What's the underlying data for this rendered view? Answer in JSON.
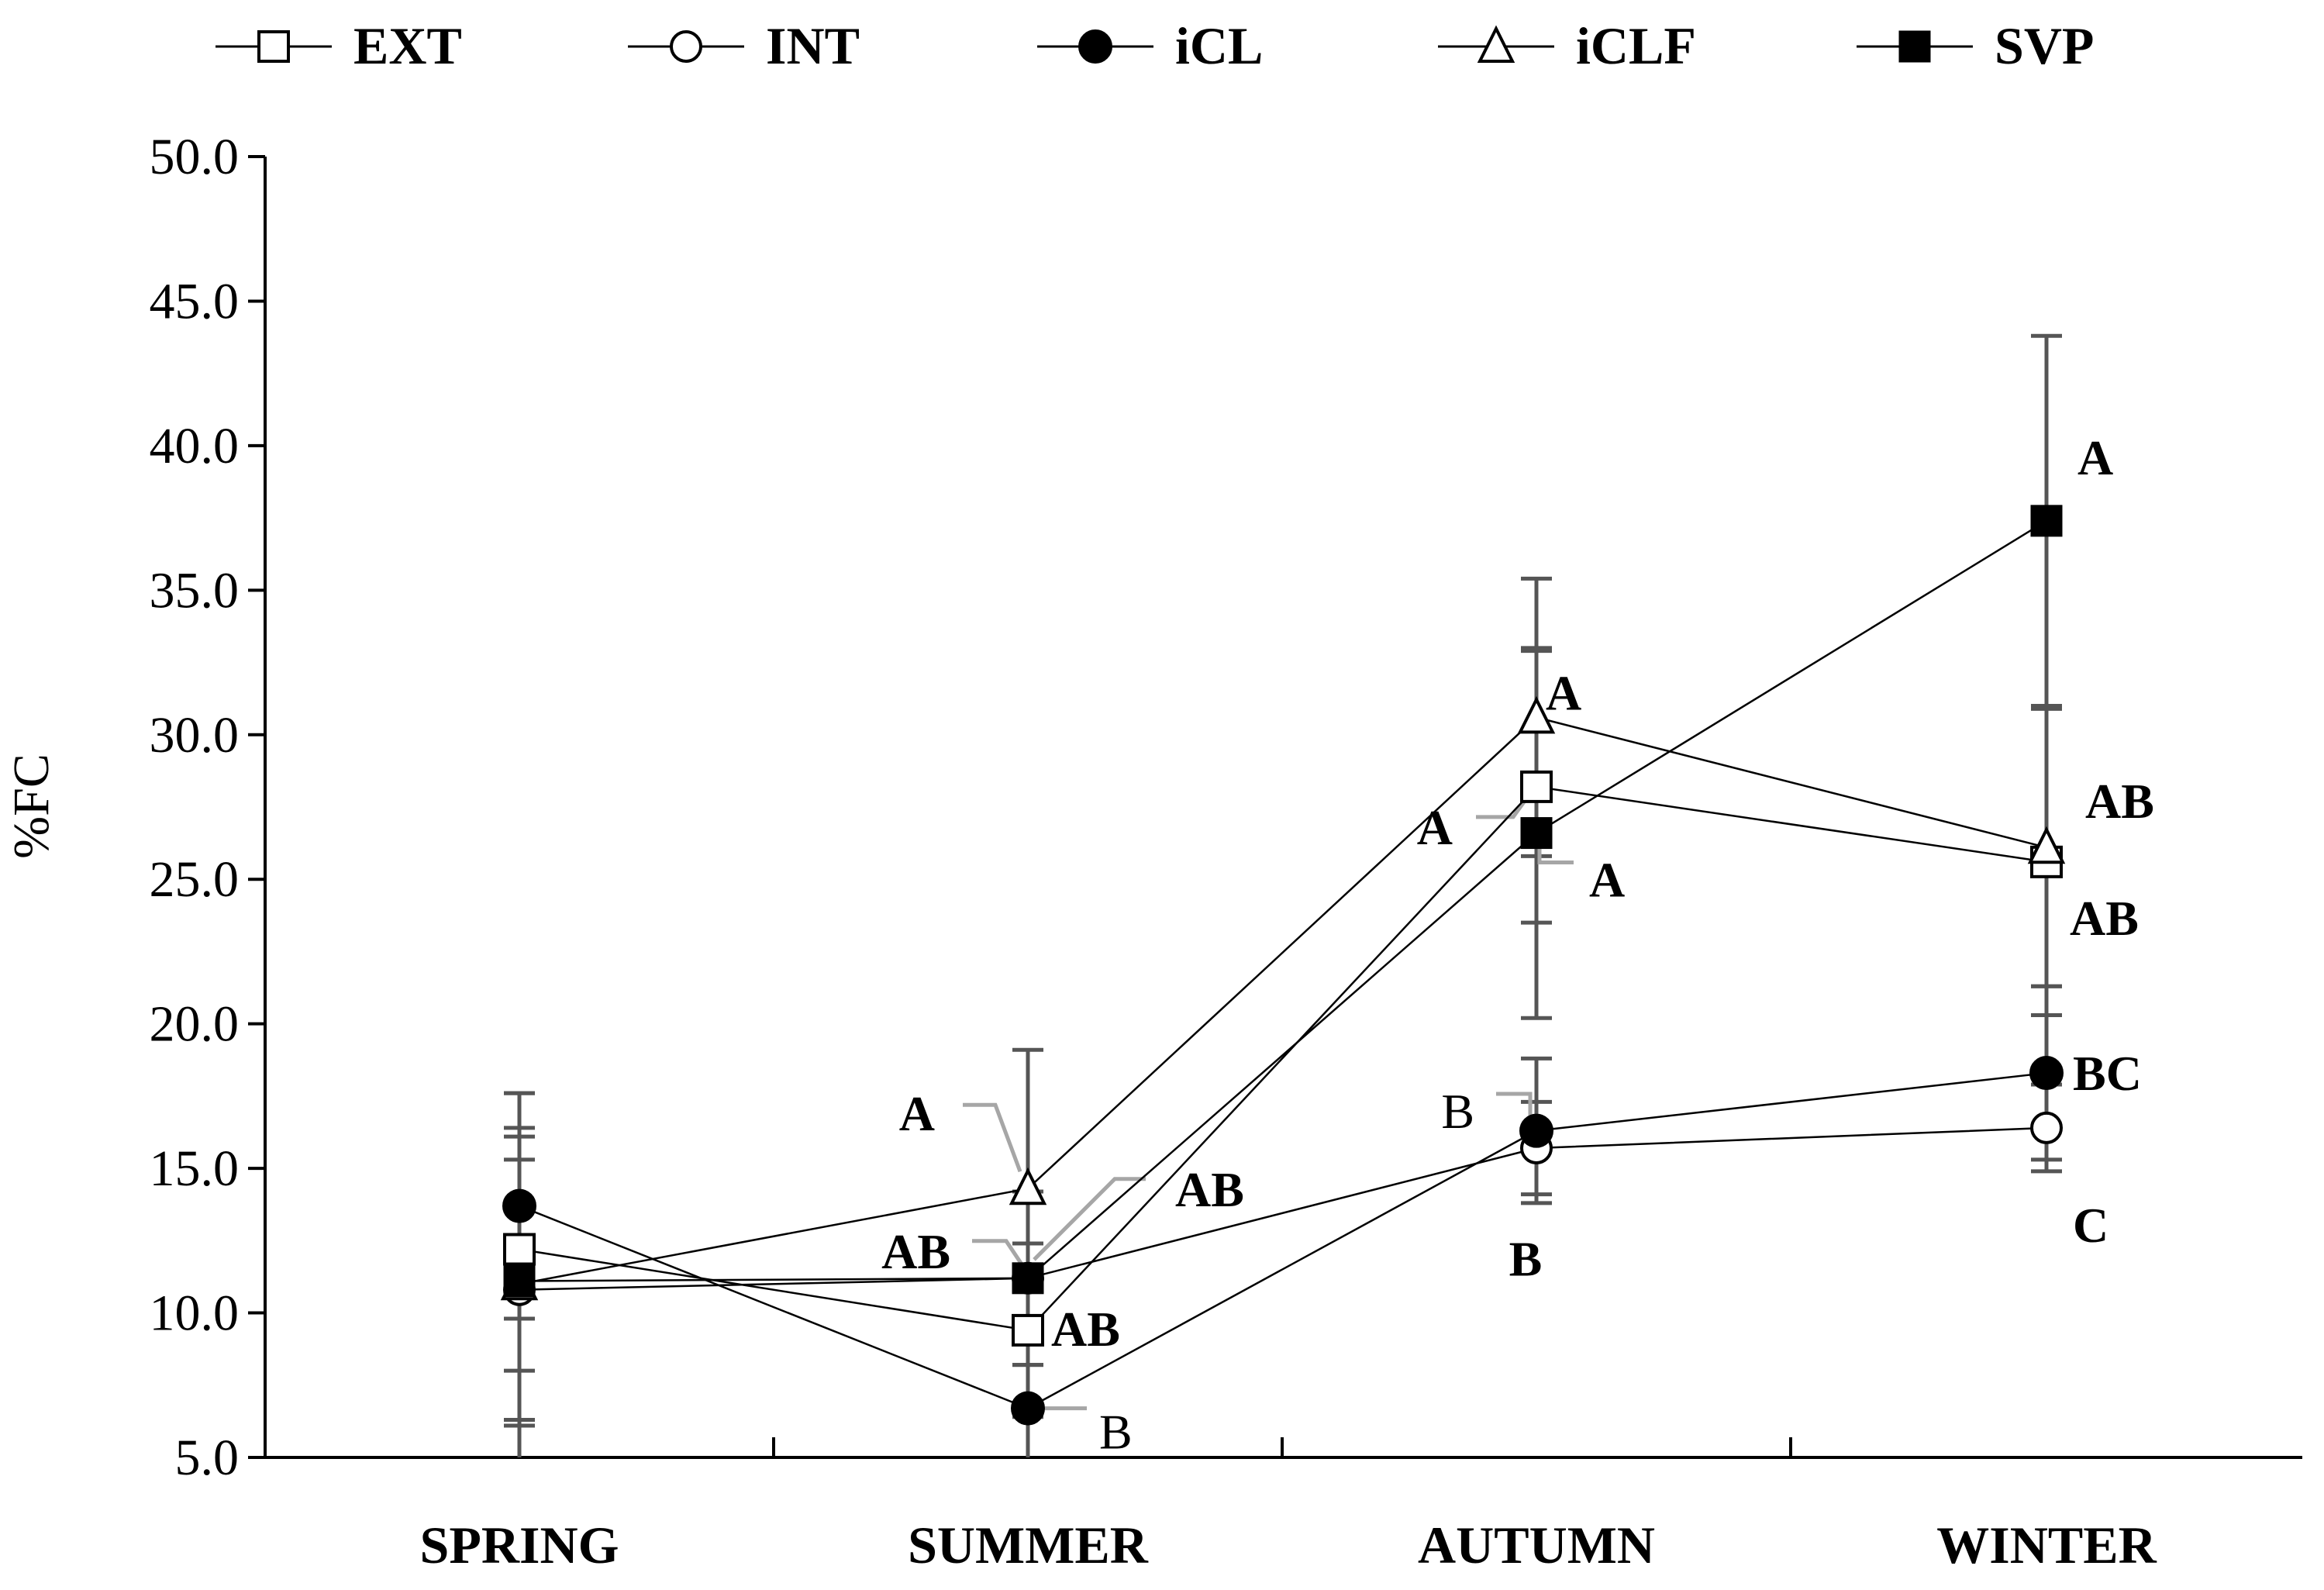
{
  "chart_data": {
    "type": "line",
    "title": "",
    "xlabel": "",
    "ylabel": "%FC",
    "ylim": [
      5.0,
      50.0
    ],
    "yticks": [
      "5.0",
      "10.0",
      "15.0",
      "20.0",
      "25.0",
      "30.0",
      "35.0",
      "40.0",
      "45.0",
      "50.0"
    ],
    "ytick_values": [
      5,
      10,
      15,
      20,
      25,
      30,
      35,
      40,
      45,
      50
    ],
    "categories": [
      "SPRING",
      "SUMMER",
      "AUTUMN",
      "WINTER"
    ],
    "legend_position": "top",
    "grid": false,
    "series": [
      {
        "name": "EXT",
        "marker": "open-square",
        "values": [
          12.2,
          9.4,
          28.2,
          25.6
        ],
        "err": [
          4.2,
          3.0,
          4.7,
          5.3
        ]
      },
      {
        "name": "INT",
        "marker": "open-circle",
        "values": [
          10.8,
          11.2,
          15.7,
          16.4
        ],
        "err": [
          4.5,
          3.0,
          1.6,
          1.5
        ]
      },
      {
        "name": "iCL",
        "marker": "filled-circle",
        "values": [
          13.7,
          6.7,
          16.3,
          18.3
        ],
        "err": [
          3.9,
          4.7,
          2.5,
          3.0
        ]
      },
      {
        "name": "iCLF",
        "marker": "open-triangle",
        "values": [
          11.0,
          14.3,
          30.6,
          26.1
        ],
        "err": [
          6.6,
          4.8,
          4.8,
          4.8
        ]
      },
      {
        "name": "SVP",
        "marker": "filled-square",
        "values": [
          11.1,
          11.2,
          26.6,
          37.4
        ],
        "err": [
          5.0,
          3.0,
          6.4,
          6.4
        ]
      }
    ],
    "annotations": [
      {
        "text": "A",
        "category": "SUMMER",
        "series": "iCLF",
        "bold": true
      },
      {
        "text": "AB",
        "category": "SUMMER",
        "series": "SVP",
        "bold": true
      },
      {
        "text": "AB",
        "category": "SUMMER",
        "series": "INT",
        "bold": true
      },
      {
        "text": "AB",
        "category": "SUMMER",
        "series": "EXT",
        "bold": true
      },
      {
        "text": "B",
        "category": "SUMMER",
        "series": "iCL",
        "bold": false
      },
      {
        "text": "A",
        "category": "AUTUMN",
        "series": "iCLF",
        "bold": true
      },
      {
        "text": "A",
        "category": "AUTUMN",
        "series": "EXT",
        "bold": true
      },
      {
        "text": "A",
        "category": "AUTUMN",
        "series": "SVP",
        "bold": true
      },
      {
        "text": "B",
        "category": "AUTUMN",
        "series": "INT",
        "bold": false
      },
      {
        "text": "B",
        "category": "AUTUMN",
        "series": "iCL",
        "bold": true
      },
      {
        "text": "A",
        "category": "WINTER",
        "series": "SVP",
        "bold": true
      },
      {
        "text": "AB",
        "category": "WINTER",
        "series": "iCLF",
        "bold": true
      },
      {
        "text": "AB",
        "category": "WINTER",
        "series": "EXT",
        "bold": true
      },
      {
        "text": "BC",
        "category": "WINTER",
        "series": "iCL",
        "bold": true
      },
      {
        "text": "C",
        "category": "WINTER",
        "series": "INT",
        "bold": true
      }
    ]
  }
}
